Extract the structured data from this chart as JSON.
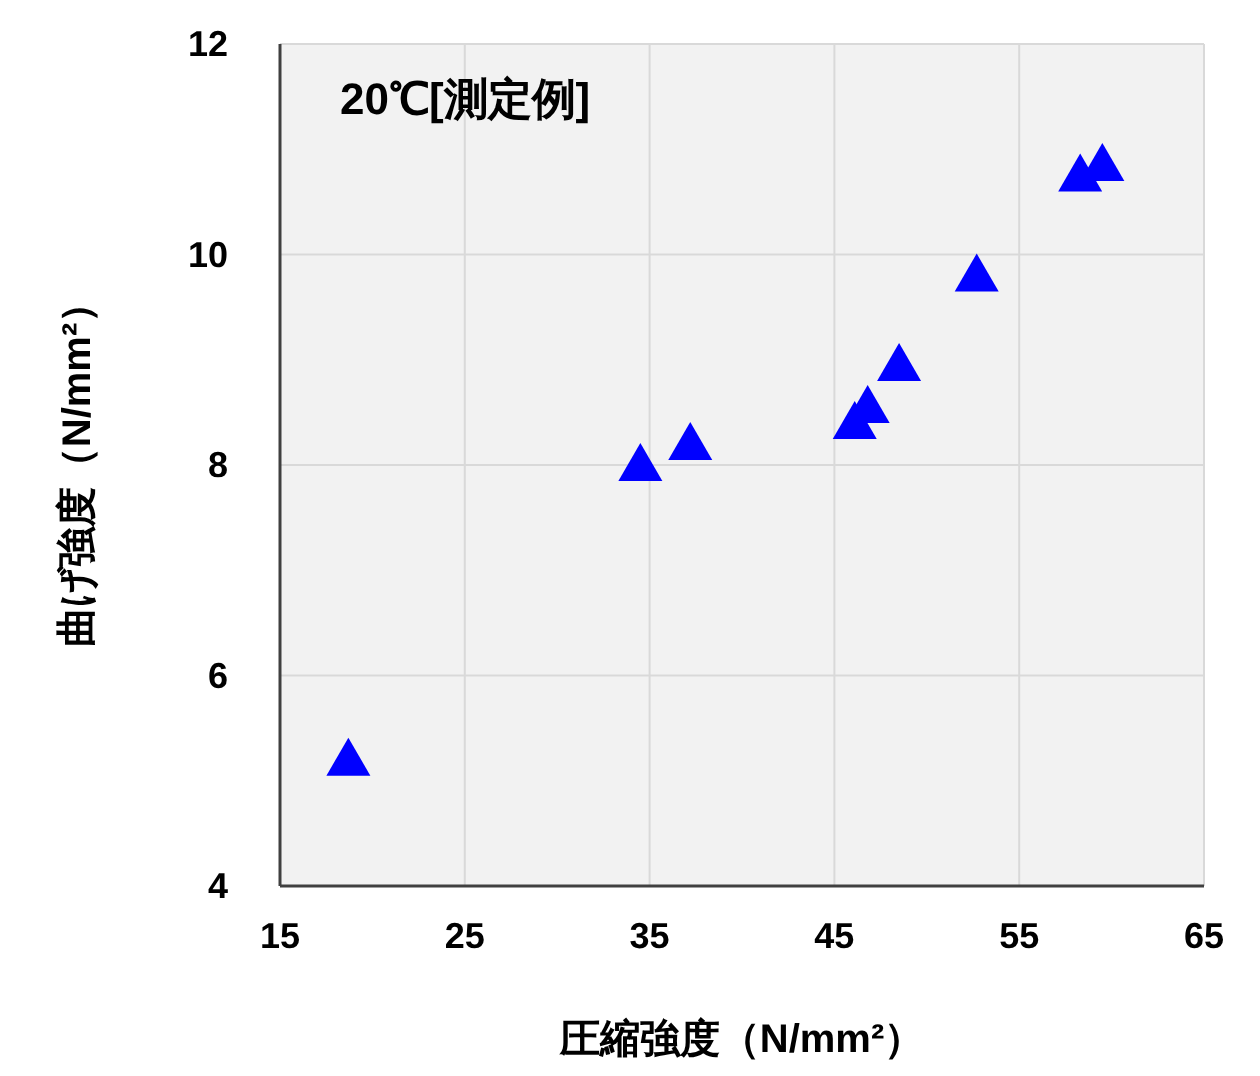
{
  "chart_data": {
    "type": "scatter",
    "title": "20℃[測定例]",
    "xlabel": "圧縮強度（N/mm²）",
    "ylabel": "曲げ強度（N/mm²）",
    "x": [
      18.7,
      34.5,
      37.2,
      46.1,
      46.8,
      48.5,
      52.7,
      58.3,
      59.5
    ],
    "series": [
      {
        "color": "#0000ff",
        "values": [
          5.2,
          8.0,
          8.2,
          8.4,
          8.55,
          8.95,
          9.8,
          10.75,
          10.85
        ]
      }
    ],
    "xlim": [
      15,
      65
    ],
    "xticks": [
      15,
      25,
      35,
      45,
      55,
      65
    ],
    "ylim": [
      4,
      12
    ],
    "yticks": [
      4,
      6,
      8,
      10,
      12
    ],
    "grid": true,
    "marker": "triangle"
  }
}
